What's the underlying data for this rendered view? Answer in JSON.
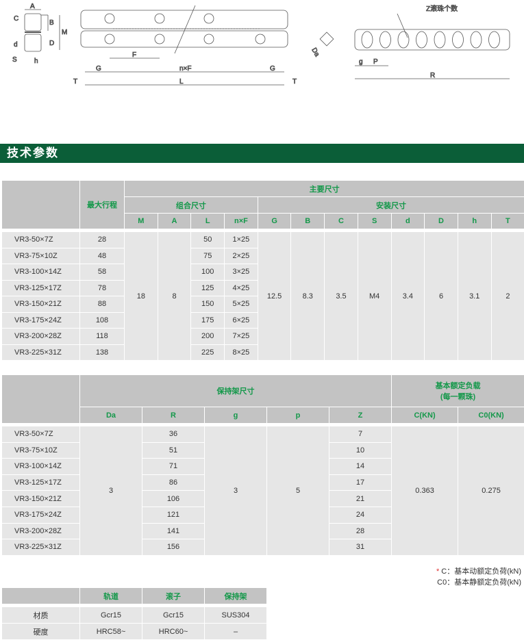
{
  "drawing": {
    "labels_cross": [
      "A",
      "B",
      "C",
      "M",
      "D",
      "d",
      "S",
      "h"
    ],
    "labels_rail": {
      "F": "F",
      "G": "G",
      "nF": "n×F",
      "L": "L",
      "T": "T"
    },
    "label_da": "Da",
    "labels_cage": {
      "z_note": "Z滚珠个数",
      "g": "g",
      "P": "P",
      "R": "R"
    }
  },
  "section_title": "技术参数",
  "table1": {
    "header": {
      "main": "主要尺寸",
      "stroke": "最大行程",
      "combo": "组合尺寸",
      "install": "安装尺寸",
      "cols": [
        "M",
        "A",
        "L",
        "n×F",
        "G",
        "B",
        "C",
        "S",
        "d",
        "D",
        "h",
        "T"
      ]
    },
    "rows": [
      {
        "model": "VR3-50×7Z",
        "stroke": "28",
        "L": "50",
        "nF": "1×25"
      },
      {
        "model": "VR3-75×10Z",
        "stroke": "48",
        "L": "75",
        "nF": "2×25"
      },
      {
        "model": "VR3-100×14Z",
        "stroke": "58",
        "L": "100",
        "nF": "3×25"
      },
      {
        "model": "VR3-125×17Z",
        "stroke": "78",
        "L": "125",
        "nF": "4×25"
      },
      {
        "model": "VR3-150×21Z",
        "stroke": "88",
        "L": "150",
        "nF": "5×25"
      },
      {
        "model": "VR3-175×24Z",
        "stroke": "108",
        "L": "175",
        "nF": "6×25"
      },
      {
        "model": "VR3-200×28Z",
        "stroke": "118",
        "L": "200",
        "nF": "7×25"
      },
      {
        "model": "VR3-225×31Z",
        "stroke": "138",
        "L": "225",
        "nF": "8×25"
      }
    ],
    "shared": {
      "M": "18",
      "A": "8",
      "G": "12.5",
      "B": "8.3",
      "C": "3.5",
      "S": "M4",
      "d": "3.4",
      "D": "6",
      "h": "3.1",
      "T": "2"
    }
  },
  "table2": {
    "header": {
      "cage": "保持架尺寸",
      "load_line1": "基本额定负载",
      "load_line2": "(每一颗珠)",
      "cols": [
        "Da",
        "R",
        "g",
        "p",
        "Z",
        "C(KN)",
        "C0(KN)"
      ]
    },
    "rows": [
      {
        "model": "VR3-50×7Z",
        "R": "36",
        "Z": "7"
      },
      {
        "model": "VR3-75×10Z",
        "R": "51",
        "Z": "10"
      },
      {
        "model": "VR3-100×14Z",
        "R": "71",
        "Z": "14"
      },
      {
        "model": "VR3-125×17Z",
        "R": "86",
        "Z": "17"
      },
      {
        "model": "VR3-150×21Z",
        "R": "106",
        "Z": "21"
      },
      {
        "model": "VR3-175×24Z",
        "R": "121",
        "Z": "24"
      },
      {
        "model": "VR3-200×28Z",
        "R": "141",
        "Z": "28"
      },
      {
        "model": "VR3-225×31Z",
        "R": "156",
        "Z": "31"
      }
    ],
    "shared": {
      "Da": "3",
      "g": "3",
      "p": "5",
      "C": "0.363",
      "C0": "0.275"
    }
  },
  "notes": {
    "star": "*",
    "c": "C：基本动额定负荷(kN)",
    "c0": "C0：基本静额定负荷(kN)"
  },
  "table3": {
    "header": [
      "轨道",
      "滚子",
      "保持架"
    ],
    "rows": [
      {
        "label": "材质",
        "values": [
          "Gcr15",
          "Gcr15",
          "SUS304"
        ]
      },
      {
        "label": "硬度",
        "values": [
          "HRC58~",
          "HRC60~",
          "–"
        ]
      }
    ]
  },
  "colors": {
    "banner": "#0b5e38",
    "header_text": "#14984a",
    "header_bg": "#c3c3c3",
    "body_bg": "#e6e6e6"
  }
}
